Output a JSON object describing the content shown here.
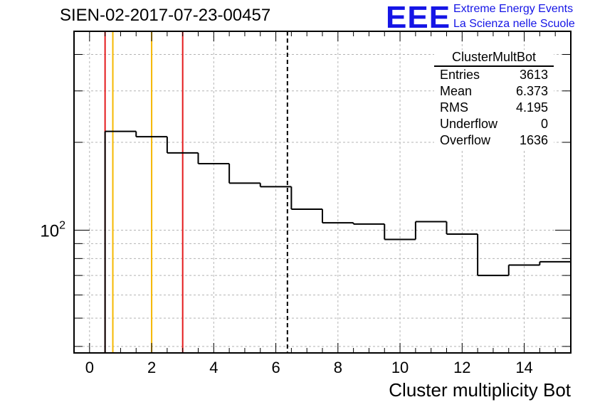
{
  "header": {
    "title": "SIEN-02-2017-07-23-00457"
  },
  "logo": {
    "mark": "EEE",
    "line1": "Extreme Energy Events",
    "line2": "La Scienza nelle Scuole",
    "color": "#1515e6"
  },
  "stats_box": {
    "name": "ClusterMultBot",
    "rows": [
      {
        "label": "Entries",
        "value": "3613"
      },
      {
        "label": "Mean",
        "value": "6.373"
      },
      {
        "label": "RMS",
        "value": "4.195"
      },
      {
        "label": "Underflow",
        "value": "0"
      },
      {
        "label": "Overflow",
        "value": "1636"
      }
    ]
  },
  "chart_data": {
    "type": "histogram",
    "xlabel": "Cluster multiplicity Bot",
    "ylabel": "",
    "xlim": [
      -0.5,
      15.5
    ],
    "ylim": [
      38,
      480
    ],
    "y_log": true,
    "grid": true,
    "x_ticks": [
      0,
      2,
      4,
      6,
      8,
      10,
      12,
      14
    ],
    "x_tick_labels": [
      "0",
      "2",
      "4",
      "6",
      "8",
      "10",
      "12",
      "14"
    ],
    "y_tick_labels": [
      {
        "base": "10",
        "exp": "2",
        "value": 100
      }
    ],
    "bins": [
      {
        "low": 0.5,
        "high": 1.5,
        "value": 218
      },
      {
        "low": 1.5,
        "high": 2.5,
        "value": 209
      },
      {
        "low": 2.5,
        "high": 3.5,
        "value": 184
      },
      {
        "low": 3.5,
        "high": 4.5,
        "value": 169
      },
      {
        "low": 4.5,
        "high": 5.5,
        "value": 145
      },
      {
        "low": 5.5,
        "high": 6.5,
        "value": 141
      },
      {
        "low": 6.5,
        "high": 7.5,
        "value": 118
      },
      {
        "low": 7.5,
        "high": 8.5,
        "value": 106
      },
      {
        "low": 8.5,
        "high": 9.5,
        "value": 105
      },
      {
        "low": 9.5,
        "high": 10.5,
        "value": 93
      },
      {
        "low": 10.5,
        "high": 11.5,
        "value": 107
      },
      {
        "low": 11.5,
        "high": 12.5,
        "value": 97
      },
      {
        "low": 12.5,
        "high": 13.5,
        "value": 70
      },
      {
        "low": 13.5,
        "high": 14.5,
        "value": 76
      },
      {
        "low": 14.5,
        "high": 15.5,
        "value": 78
      }
    ],
    "vertical_lines": [
      {
        "x": 0.5,
        "color": "#e41a1c",
        "style": "solid"
      },
      {
        "x": 0.75,
        "color": "#f5b800",
        "style": "solid"
      },
      {
        "x": 2.0,
        "color": "#f5b800",
        "style": "solid"
      },
      {
        "x": 3.0,
        "color": "#e41a1c",
        "style": "solid"
      },
      {
        "x": 6.373,
        "color": "#000000",
        "style": "dashed"
      }
    ]
  }
}
